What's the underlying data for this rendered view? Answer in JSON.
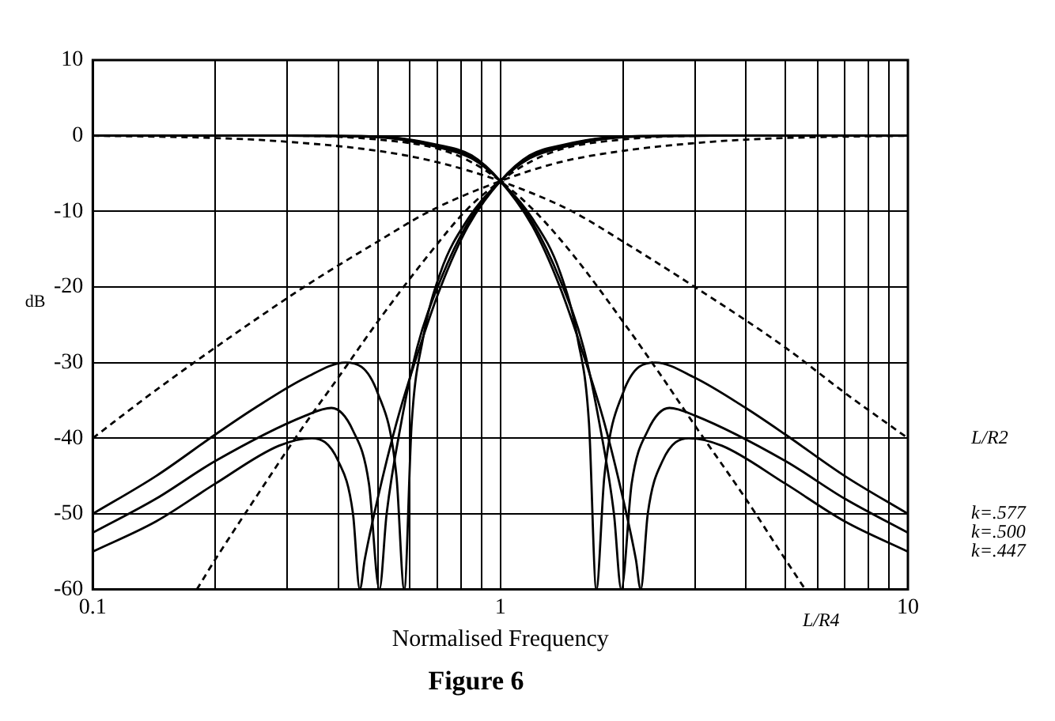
{
  "chart_data": {
    "type": "line",
    "title": "Figure 6",
    "xlabel": "Normalised Frequency",
    "ylabel": "dB",
    "log": "x",
    "xlim": [
      0.1,
      10
    ],
    "ylim": [
      -60,
      10
    ],
    "xticks": [
      0.1,
      {
        "value": 0.2,
        "label": null
      },
      {
        "value": 0.3,
        "label": null
      },
      {
        "value": 0.4,
        "label": null
      },
      {
        "value": 0.5,
        "label": null
      },
      {
        "value": 0.6,
        "label": null
      },
      {
        "value": 0.7,
        "label": null
      },
      {
        "value": 0.8,
        "label": null
      },
      {
        "value": 0.9,
        "label": null
      },
      1,
      {
        "value": 2,
        "label": null
      },
      {
        "value": 3,
        "label": null
      },
      {
        "value": 4,
        "label": null
      },
      {
        "value": 5,
        "label": null
      },
      {
        "value": 6,
        "label": null
      },
      {
        "value": 7,
        "label": null
      },
      {
        "value": 8,
        "label": null
      },
      {
        "value": 9,
        "label": null
      },
      10
    ],
    "yticks": [
      -60,
      -50,
      -40,
      -30,
      -20,
      -10,
      0,
      10
    ],
    "grid": true,
    "legend": false,
    "marker": "none",
    "series": [
      {
        "name": "L/R2",
        "color": "#000000",
        "line_style": "dashed",
        "x": [
          0.1,
          0.2,
          0.3,
          0.5,
          0.7,
          1,
          1.5,
          2,
          3,
          5,
          7,
          10
        ],
        "values": [
          0,
          -0.3,
          -0.8,
          -2,
          -3.5,
          -6,
          -10,
          -14,
          -20,
          -28,
          -34,
          -40
        ]
      },
      {
        "color": "#000000",
        "line_style": "dashed",
        "x": [
          0.1,
          0.14,
          0.2,
          0.33,
          0.5,
          0.67,
          1,
          1.4,
          2,
          3.3,
          5,
          10
        ],
        "values": [
          -40,
          -34,
          -28,
          -20,
          -14,
          -10,
          -6,
          -3.5,
          -2,
          -0.8,
          -0.3,
          0
        ]
      },
      {
        "name": "L/R4",
        "color": "#000000",
        "line_style": "dashed",
        "x": [
          0.1,
          0.3,
          0.5,
          0.7,
          0.85,
          1,
          1.2,
          1.5,
          2,
          2.5,
          3,
          4,
          5,
          5.6
        ],
        "values": [
          0,
          0,
          -0.5,
          -1.7,
          -3.5,
          -6,
          -9.7,
          -15.6,
          -24.6,
          -32,
          -38.3,
          -48,
          -56,
          -60
        ]
      },
      {
        "color": "#000000",
        "line_style": "dashed",
        "x": [
          0.18,
          0.2,
          0.25,
          0.33,
          0.4,
          0.5,
          0.67,
          0.83,
          1,
          1.18,
          1.43,
          2,
          3.3,
          10
        ],
        "values": [
          -60,
          -56,
          -48,
          -38.3,
          -32,
          -24.6,
          -15.6,
          -9.7,
          -6,
          -3.5,
          -1.7,
          -0.5,
          0,
          0
        ]
      },
      {
        "name": "k=.577",
        "color": "#000000",
        "line_style": "solid",
        "x": [
          0.1,
          0.3,
          0.5,
          0.7,
          0.85,
          1,
          1.2,
          1.4,
          1.55,
          1.65,
          1.72,
          1.8,
          2,
          2.4,
          3,
          4,
          5,
          7,
          10
        ],
        "values": [
          0,
          0,
          -0.2,
          -1.5,
          -3,
          -6,
          -11,
          -18,
          -27,
          -38,
          -60,
          -45,
          -34,
          -30,
          -32,
          -36,
          -39.5,
          -45,
          -50
        ]
      },
      {
        "color": "#000000",
        "line_style": "solid",
        "x": [
          0.1,
          0.143,
          0.2,
          0.25,
          0.333,
          0.417,
          0.5,
          0.556,
          0.581,
          0.606,
          0.645,
          0.714,
          0.833,
          1,
          1.18,
          1.43,
          2,
          3.33,
          10
        ],
        "values": [
          -50,
          -45,
          -39.5,
          -36,
          -32,
          -30,
          -34,
          -45,
          -60,
          -38,
          -27,
          -18,
          -11,
          -6,
          -3,
          -1.5,
          -0.2,
          0,
          0
        ]
      },
      {
        "name": "k=.500",
        "color": "#000000",
        "line_style": "solid",
        "x": [
          0.1,
          0.3,
          0.5,
          0.7,
          0.85,
          1,
          1.2,
          1.4,
          1.6,
          1.75,
          1.9,
          1.98,
          2.1,
          2.3,
          2.6,
          3,
          5,
          7,
          10
        ],
        "values": [
          0,
          0,
          -0.1,
          -1.3,
          -2.8,
          -6,
          -11.5,
          -19,
          -28,
          -38,
          -50,
          -60,
          -46,
          -39,
          -36,
          -37,
          -43,
          -48,
          -52.5
        ]
      },
      {
        "color": "#000000",
        "line_style": "solid",
        "x": [
          0.1,
          0.143,
          0.2,
          0.333,
          0.385,
          0.435,
          0.476,
          0.505,
          0.526,
          0.571,
          0.625,
          0.714,
          0.833,
          1,
          1.18,
          1.43,
          2,
          3.33,
          10
        ],
        "values": [
          -52.5,
          -48,
          -43,
          -37,
          -36,
          -39,
          -46,
          -60,
          -50,
          -38,
          -28,
          -19,
          -11.5,
          -6,
          -2.8,
          -1.3,
          -0.1,
          0,
          0
        ]
      },
      {
        "name": "k=.447",
        "color": "#000000",
        "line_style": "solid",
        "x": [
          0.1,
          0.3,
          0.5,
          0.7,
          0.85,
          1,
          1.2,
          1.4,
          1.6,
          1.8,
          2,
          2.15,
          2.21,
          2.3,
          2.5,
          2.9,
          3.5,
          5,
          7,
          10
        ],
        "values": [
          0,
          0,
          -0.1,
          -1.2,
          -2.6,
          -6,
          -12,
          -20,
          -29,
          -38,
          -48,
          -56,
          -60,
          -50,
          -43,
          -40,
          -41,
          -46,
          -51,
          -55
        ]
      },
      {
        "color": "#000000",
        "line_style": "solid",
        "x": [
          0.1,
          0.143,
          0.2,
          0.286,
          0.345,
          0.4,
          0.435,
          0.452,
          0.465,
          0.5,
          0.556,
          0.625,
          0.714,
          0.833,
          1,
          1.18,
          1.43,
          2,
          3.33,
          10
        ],
        "values": [
          -55,
          -51,
          -46,
          -41,
          -40,
          -43,
          -50,
          -60,
          -56,
          -48,
          -38,
          -29,
          -20,
          -12,
          -6,
          -2.6,
          -1.2,
          -0.1,
          0,
          0
        ]
      }
    ]
  }
}
